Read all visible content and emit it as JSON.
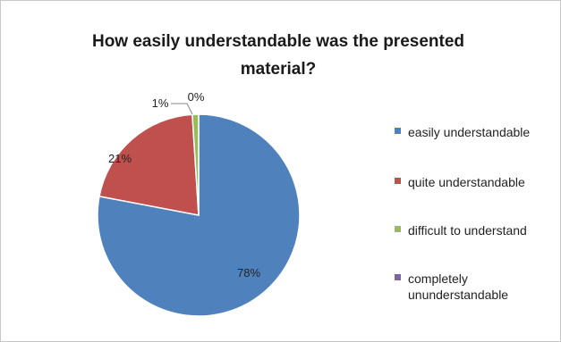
{
  "chart_data": {
    "type": "pie",
    "title": "How easily understandable was the presented material?",
    "categories": [
      "easily understandable",
      "quite understandable",
      "difficult to understand",
      "completely ununderstandable"
    ],
    "values": [
      78,
      21,
      1,
      0
    ],
    "data_labels": [
      "78%",
      "21%",
      "1%",
      "0%"
    ],
    "colors": [
      "#4F81BD",
      "#C0504D",
      "#9BBB59",
      "#8064A2"
    ],
    "legend_position": "right"
  }
}
